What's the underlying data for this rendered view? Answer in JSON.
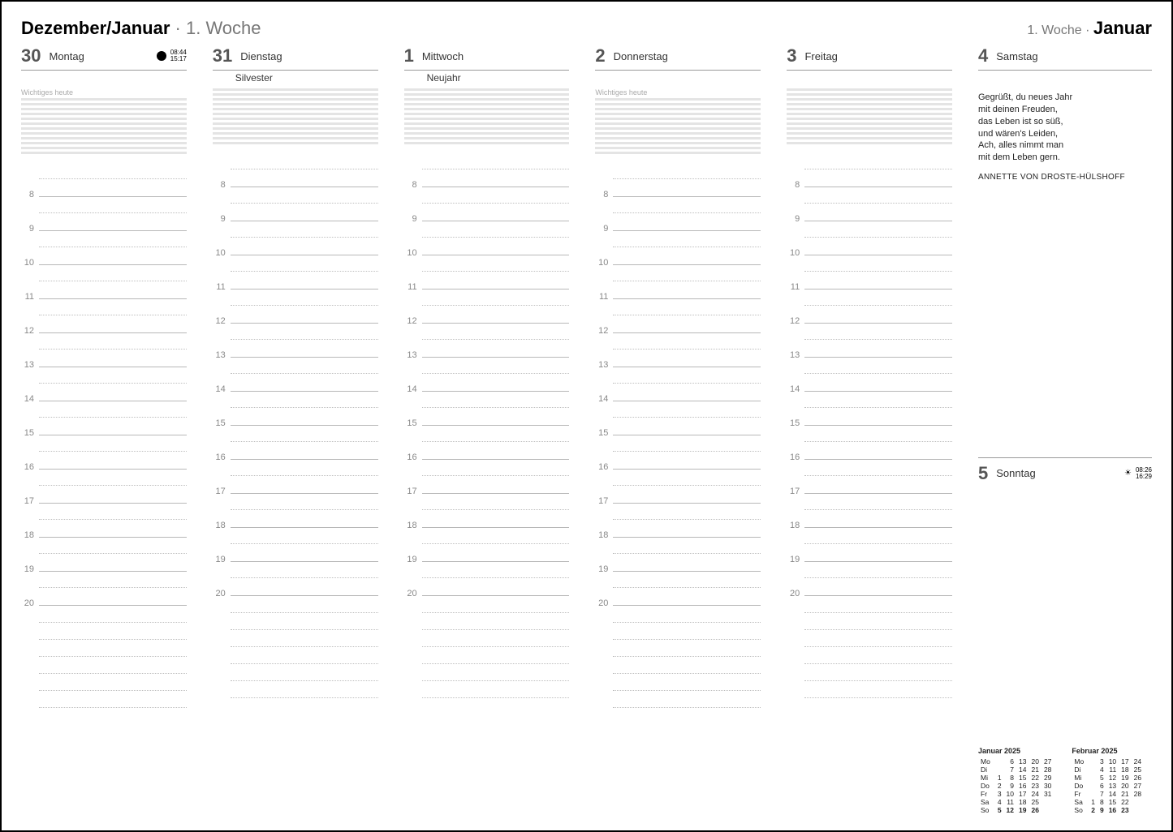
{
  "header": {
    "left_month": "Dezember/Januar",
    "left_week": "1. Woche",
    "right_week": "1. Woche",
    "right_month": "Januar"
  },
  "columns": [
    {
      "num": "30",
      "name": "Montag",
      "sub": "",
      "notes_label": "Wichtiges heute",
      "moon": true,
      "times": "08:44\n15:17"
    },
    {
      "num": "31",
      "name": "Dienstag",
      "sub": "Silvester",
      "notes_label": "",
      "moon": false,
      "times": ""
    },
    {
      "num": "1",
      "name": "Mittwoch",
      "sub": "Neujahr",
      "notes_label": "",
      "moon": false,
      "times": ""
    },
    {
      "num": "2",
      "name": "Donnerstag",
      "sub": "",
      "notes_label": "Wichtiges heute",
      "moon": false,
      "times": ""
    },
    {
      "num": "3",
      "name": "Freitag",
      "sub": "",
      "notes_label": "",
      "moon": false,
      "times": ""
    }
  ],
  "saturday": {
    "num": "4",
    "name": "Samstag"
  },
  "sunday": {
    "num": "5",
    "name": "Sonntag",
    "times": "08:26\n16:29"
  },
  "quote": {
    "l1": "Gegrüßt, du neues Jahr",
    "l2": "mit deinen Freuden,",
    "l3": "das Leben ist so süß,",
    "l4": "und wären's Leiden,",
    "l5": "Ach, alles nimmt man",
    "l6": "mit dem Leben gern.",
    "author": "ANNETTE VON DROSTE-HÜLSHOFF"
  },
  "hours": [
    "8",
    "9",
    "10",
    "11",
    "12",
    "13",
    "14",
    "15",
    "16",
    "17",
    "18",
    "19",
    "20"
  ],
  "notes_lines": 12,
  "tail_lines": 6,
  "day_labels": [
    "Mo",
    "Di",
    "Mi",
    "Do",
    "Fr",
    "Sa",
    "So"
  ],
  "minical1": {
    "title": "Januar 2025",
    "rows": [
      [
        "",
        "6",
        "13",
        "20",
        "27"
      ],
      [
        "",
        "7",
        "14",
        "21",
        "28"
      ],
      [
        "1",
        "8",
        "15",
        "22",
        "29"
      ],
      [
        "2",
        "9",
        "16",
        "23",
        "30"
      ],
      [
        "3",
        "10",
        "17",
        "24",
        "31"
      ],
      [
        "4",
        "11",
        "18",
        "25",
        ""
      ],
      [
        "5",
        "12",
        "19",
        "26",
        ""
      ]
    ],
    "bold_cols": {
      "6": [
        0,
        1,
        2,
        3
      ]
    }
  },
  "minical2": {
    "title": "Februar 2025",
    "rows": [
      [
        "",
        "3",
        "10",
        "17",
        "24"
      ],
      [
        "",
        "4",
        "11",
        "18",
        "25"
      ],
      [
        "",
        "5",
        "12",
        "19",
        "26"
      ],
      [
        "",
        "6",
        "13",
        "20",
        "27"
      ],
      [
        "",
        "7",
        "14",
        "21",
        "28"
      ],
      [
        "1",
        "8",
        "15",
        "22",
        ""
      ],
      [
        "2",
        "9",
        "16",
        "23",
        ""
      ]
    ],
    "bold_cols": {
      "6": [
        0,
        1,
        2,
        3
      ]
    }
  }
}
